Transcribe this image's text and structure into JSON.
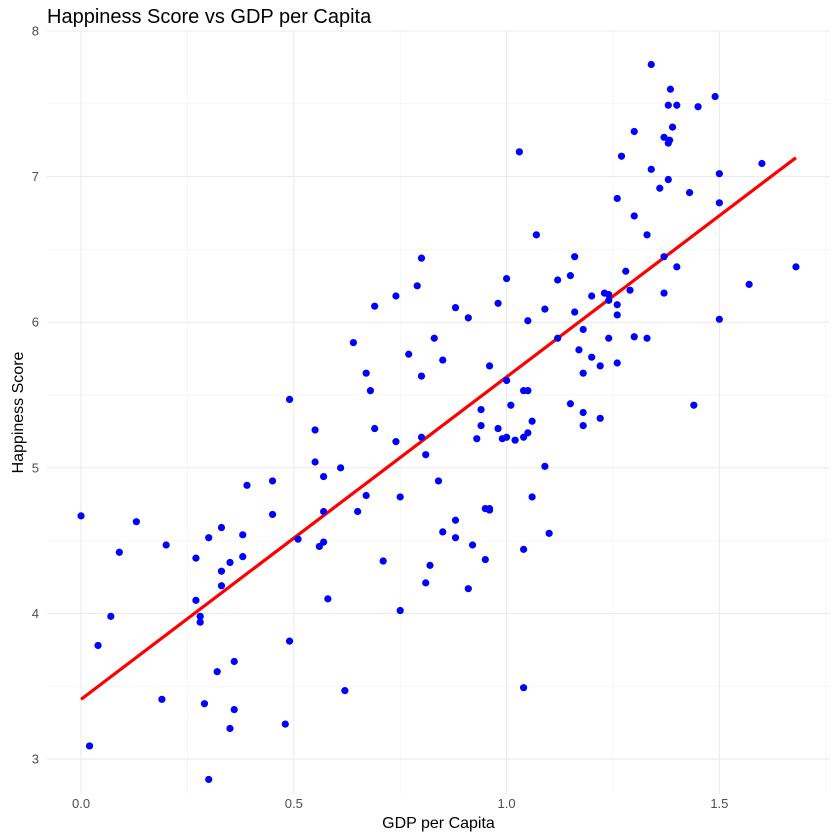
{
  "chart_data": {
    "type": "scatter",
    "title": "Happiness Score vs GDP per Capita",
    "xlabel": "GDP per Capita",
    "ylabel": "Happiness Score",
    "xlim": [
      -0.08,
      1.76
    ],
    "ylim": [
      2.76,
      8.0
    ],
    "x_ticks": [
      0.0,
      0.5,
      1.0,
      1.5
    ],
    "x_tick_labels": [
      "0.0",
      "0.5",
      "1.0",
      "1.5"
    ],
    "y_ticks": [
      3,
      4,
      5,
      6,
      7,
      8
    ],
    "y_tick_labels": [
      "3",
      "4",
      "5",
      "6",
      "7",
      "8"
    ],
    "grid": true,
    "point_color": "#0000ff",
    "fit_color": "#ff0000",
    "series": [
      {
        "type": "points",
        "points": [
          [
            1.34,
            7.77
          ],
          [
            1.385,
            7.6
          ],
          [
            1.38,
            7.49
          ],
          [
            1.4,
            7.49
          ],
          [
            1.49,
            7.55
          ],
          [
            1.45,
            7.48
          ],
          [
            1.39,
            7.34
          ],
          [
            1.3,
            7.31
          ],
          [
            1.37,
            7.27
          ],
          [
            1.38,
            7.23
          ],
          [
            1.383,
            7.25
          ],
          [
            1.03,
            7.17
          ],
          [
            1.27,
            7.14
          ],
          [
            1.6,
            7.09
          ],
          [
            1.34,
            7.05
          ],
          [
            1.5,
            7.02
          ],
          [
            1.38,
            6.98
          ],
          [
            1.36,
            6.92
          ],
          [
            1.43,
            6.89
          ],
          [
            1.26,
            6.85
          ],
          [
            1.5,
            6.82
          ],
          [
            1.3,
            6.73
          ],
          [
            1.07,
            6.6
          ],
          [
            1.33,
            6.6
          ],
          [
            1.37,
            6.45
          ],
          [
            1.16,
            6.45
          ],
          [
            0.8,
            6.44
          ],
          [
            1.4,
            6.38
          ],
          [
            1.68,
            6.38
          ],
          [
            1.28,
            6.35
          ],
          [
            1.15,
            6.32
          ],
          [
            1.0,
            6.3
          ],
          [
            1.12,
            6.29
          ],
          [
            1.57,
            6.26
          ],
          [
            0.79,
            6.25
          ],
          [
            1.29,
            6.22
          ],
          [
            1.37,
            6.2
          ],
          [
            1.23,
            6.2
          ],
          [
            1.24,
            6.19
          ],
          [
            1.2,
            6.18
          ],
          [
            0.74,
            6.18
          ],
          [
            1.24,
            6.15
          ],
          [
            0.98,
            6.13
          ],
          [
            1.26,
            6.12
          ],
          [
            0.69,
            6.11
          ],
          [
            0.88,
            6.1
          ],
          [
            1.09,
            6.09
          ],
          [
            1.16,
            6.07
          ],
          [
            1.26,
            6.05
          ],
          [
            0.91,
            6.03
          ],
          [
            1.5,
            6.02
          ],
          [
            1.05,
            6.01
          ],
          [
            1.18,
            5.95
          ],
          [
            1.3,
            5.9
          ],
          [
            1.24,
            5.89
          ],
          [
            0.83,
            5.89
          ],
          [
            1.12,
            5.89
          ],
          [
            1.33,
            5.89
          ],
          [
            0.64,
            5.86
          ],
          [
            1.17,
            5.81
          ],
          [
            0.77,
            5.78
          ],
          [
            1.2,
            5.76
          ],
          [
            0.85,
            5.74
          ],
          [
            1.26,
            5.72
          ],
          [
            1.22,
            5.7
          ],
          [
            0.96,
            5.7
          ],
          [
            0.67,
            5.65
          ],
          [
            1.18,
            5.65
          ],
          [
            0.8,
            5.63
          ],
          [
            1.0,
            5.6
          ],
          [
            0.68,
            5.53
          ],
          [
            1.04,
            5.53
          ],
          [
            1.05,
            5.53
          ],
          [
            0.49,
            5.47
          ],
          [
            1.44,
            5.43
          ],
          [
            1.01,
            5.43
          ],
          [
            1.15,
            5.44
          ],
          [
            0.94,
            5.4
          ],
          [
            1.18,
            5.38
          ],
          [
            1.22,
            5.34
          ],
          [
            1.06,
            5.32
          ],
          [
            0.94,
            5.29
          ],
          [
            0.98,
            5.27
          ],
          [
            1.18,
            5.29
          ],
          [
            0.69,
            5.27
          ],
          [
            0.55,
            5.26
          ],
          [
            1.05,
            5.24
          ],
          [
            1.04,
            5.21
          ],
          [
            0.8,
            5.21
          ],
          [
            1.0,
            5.21
          ],
          [
            0.93,
            5.2
          ],
          [
            0.99,
            5.2
          ],
          [
            1.02,
            5.19
          ],
          [
            0.74,
            5.18
          ],
          [
            0.81,
            5.09
          ],
          [
            0.55,
            5.04
          ],
          [
            1.09,
            5.01
          ],
          [
            0.61,
            5.0
          ],
          [
            0.57,
            4.94
          ],
          [
            0.45,
            4.91
          ],
          [
            0.84,
            4.91
          ],
          [
            0.39,
            4.88
          ],
          [
            0.75,
            4.8
          ],
          [
            1.06,
            4.8
          ],
          [
            0.67,
            4.81
          ],
          [
            0.95,
            4.72
          ],
          [
            0.96,
            4.72
          ],
          [
            0.96,
            4.71
          ],
          [
            0.57,
            4.7
          ],
          [
            0.65,
            4.7
          ],
          [
            0.45,
            4.68
          ],
          [
            0.0,
            4.67
          ],
          [
            0.88,
            4.64
          ],
          [
            0.13,
            4.63
          ],
          [
            0.33,
            4.59
          ],
          [
            0.85,
            4.56
          ],
          [
            1.1,
            4.55
          ],
          [
            0.38,
            4.54
          ],
          [
            0.88,
            4.52
          ],
          [
            0.3,
            4.52
          ],
          [
            0.51,
            4.51
          ],
          [
            0.57,
            4.49
          ],
          [
            0.2,
            4.47
          ],
          [
            0.92,
            4.47
          ],
          [
            0.56,
            4.46
          ],
          [
            1.04,
            4.44
          ],
          [
            0.09,
            4.42
          ],
          [
            0.38,
            4.39
          ],
          [
            0.27,
            4.38
          ],
          [
            0.95,
            4.37
          ],
          [
            0.71,
            4.36
          ],
          [
            0.35,
            4.35
          ],
          [
            0.82,
            4.33
          ],
          [
            0.33,
            4.29
          ],
          [
            0.81,
            4.21
          ],
          [
            0.33,
            4.19
          ],
          [
            0.91,
            4.17
          ],
          [
            0.58,
            4.1
          ],
          [
            0.27,
            4.09
          ],
          [
            0.75,
            4.02
          ],
          [
            0.07,
            3.98
          ],
          [
            0.28,
            3.98
          ],
          [
            0.28,
            3.94
          ],
          [
            0.49,
            3.81
          ],
          [
            0.04,
            3.78
          ],
          [
            0.36,
            3.67
          ],
          [
            0.32,
            3.6
          ],
          [
            1.04,
            3.49
          ],
          [
            0.62,
            3.47
          ],
          [
            0.19,
            3.41
          ],
          [
            0.29,
            3.38
          ],
          [
            0.36,
            3.34
          ],
          [
            0.48,
            3.24
          ],
          [
            0.35,
            3.21
          ],
          [
            0.02,
            3.09
          ],
          [
            0.3,
            2.86
          ]
        ]
      },
      {
        "type": "fit_line",
        "points": [
          [
            0.0,
            3.41
          ],
          [
            1.68,
            7.13
          ]
        ]
      }
    ]
  }
}
